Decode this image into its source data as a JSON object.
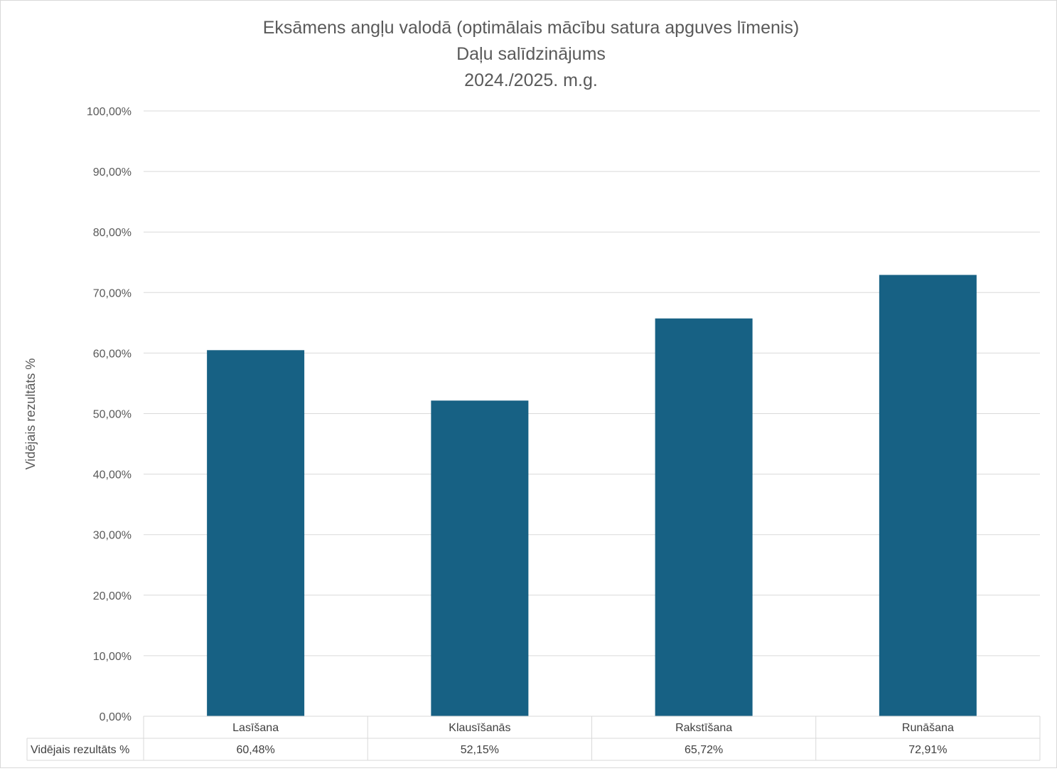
{
  "chart_data": {
    "type": "bar",
    "title_lines": [
      "Eksāmens angļu valodā (optimālais mācību satura apguves līmenis)",
      "Daļu salīdzinājums",
      "2024./2025. m.g."
    ],
    "categories": [
      "Lasīšana",
      "Klausīšanās",
      "Rakstīšana",
      "Runāšana"
    ],
    "series": [
      {
        "name": "Vidējais rezultāts %",
        "values": [
          60.48,
          52.15,
          65.72,
          72.91
        ],
        "value_labels": [
          "60,48%",
          "52,15%",
          "65,72%",
          "72,91%"
        ],
        "color": "#176184"
      }
    ],
    "ylabel": "Vidējais rezultāts %",
    "ylim": [
      0,
      100
    ],
    "yticks": [
      0,
      10,
      20,
      30,
      40,
      50,
      60,
      70,
      80,
      90,
      100
    ],
    "ytick_labels": [
      "0,00%",
      "10,00%",
      "20,00%",
      "30,00%",
      "40,00%",
      "50,00%",
      "60,00%",
      "70,00%",
      "80,00%",
      "90,00%",
      "100,00%"
    ],
    "grid": true,
    "legend": "none",
    "data_table": true,
    "gridline_color": "#d9d9d9"
  }
}
